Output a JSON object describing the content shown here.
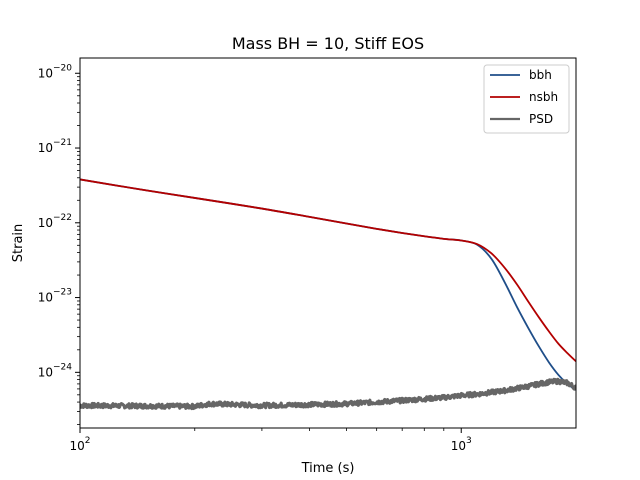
{
  "chart_data": {
    "type": "line",
    "title": "Mass BH = 10, Stiff EOS",
    "xlabel": "Time (s)",
    "ylabel": "Strain",
    "x_scale": "log",
    "y_scale": "log",
    "xlim": [
      100,
      2000
    ],
    "ylim": [
      1.8e-25,
      1.6e-20
    ],
    "x_ticks": [
      {
        "value": 100,
        "base": "10",
        "exp": "2"
      },
      {
        "value": 1000,
        "base": "10",
        "exp": "3"
      }
    ],
    "y_ticks": [
      {
        "value": 1e-24,
        "base": "10",
        "exp": "−24"
      },
      {
        "value": 1e-23,
        "base": "10",
        "exp": "−23"
      },
      {
        "value": 1e-22,
        "base": "10",
        "exp": "−22"
      },
      {
        "value": 1e-21,
        "base": "10",
        "exp": "−21"
      },
      {
        "value": 1e-20,
        "base": "10",
        "exp": "−20"
      }
    ],
    "legend_position": "top-right",
    "grid": false,
    "series": [
      {
        "name": "bbh",
        "color": "#1f4e89",
        "x": [
          100,
          150,
          200,
          300,
          400,
          500,
          600,
          700,
          800,
          900,
          1000,
          1100,
          1200,
          1300,
          1400,
          1500,
          1600,
          1700,
          1800,
          1900,
          2000
        ],
        "y": [
          3.8e-22,
          2.7e-22,
          2.15e-22,
          1.55e-22,
          1.2e-22,
          9.8e-23,
          8.3e-23,
          7.3e-23,
          6.6e-23,
          6.1e-23,
          5.8e-23,
          5.1e-23,
          3.3e-23,
          1.6e-23,
          7.5e-24,
          3.9e-24,
          2.2e-24,
          1.35e-24,
          9.2e-25,
          7e-25,
          5.8e-25
        ]
      },
      {
        "name": "nsbh",
        "color": "#b30000",
        "x": [
          100,
          150,
          200,
          300,
          400,
          500,
          600,
          700,
          800,
          900,
          1000,
          1100,
          1200,
          1300,
          1400,
          1500,
          1600,
          1700,
          1800,
          1900,
          2000
        ],
        "y": [
          3.8e-22,
          2.7e-22,
          2.15e-22,
          1.55e-22,
          1.2e-22,
          9.8e-23,
          8.3e-23,
          7.3e-23,
          6.6e-23,
          6.1e-23,
          5.8e-23,
          5.2e-23,
          3.9e-23,
          2.5e-23,
          1.5e-23,
          8.8e-24,
          5.4e-24,
          3.5e-24,
          2.4e-24,
          1.8e-24,
          1.4e-24
        ]
      },
      {
        "name": "PSD",
        "color": "#666666",
        "x": [
          100,
          150,
          200,
          220,
          300,
          400,
          500,
          600,
          700,
          800,
          900,
          1000,
          1100,
          1200,
          1300,
          1400,
          1500,
          1600,
          1700,
          1800,
          1900,
          2000
        ],
        "y": [
          3.6e-25,
          3.55e-25,
          3.5e-25,
          3.8e-25,
          3.6e-25,
          3.7e-25,
          3.8e-25,
          4e-25,
          4.2e-25,
          4.4e-25,
          4.6e-25,
          4.9e-25,
          5.1e-25,
          5.4e-25,
          5.7e-25,
          6.1e-25,
          6.5e-25,
          7e-25,
          7.4e-25,
          7.6e-25,
          7.2e-25,
          6.2e-25
        ]
      }
    ]
  }
}
